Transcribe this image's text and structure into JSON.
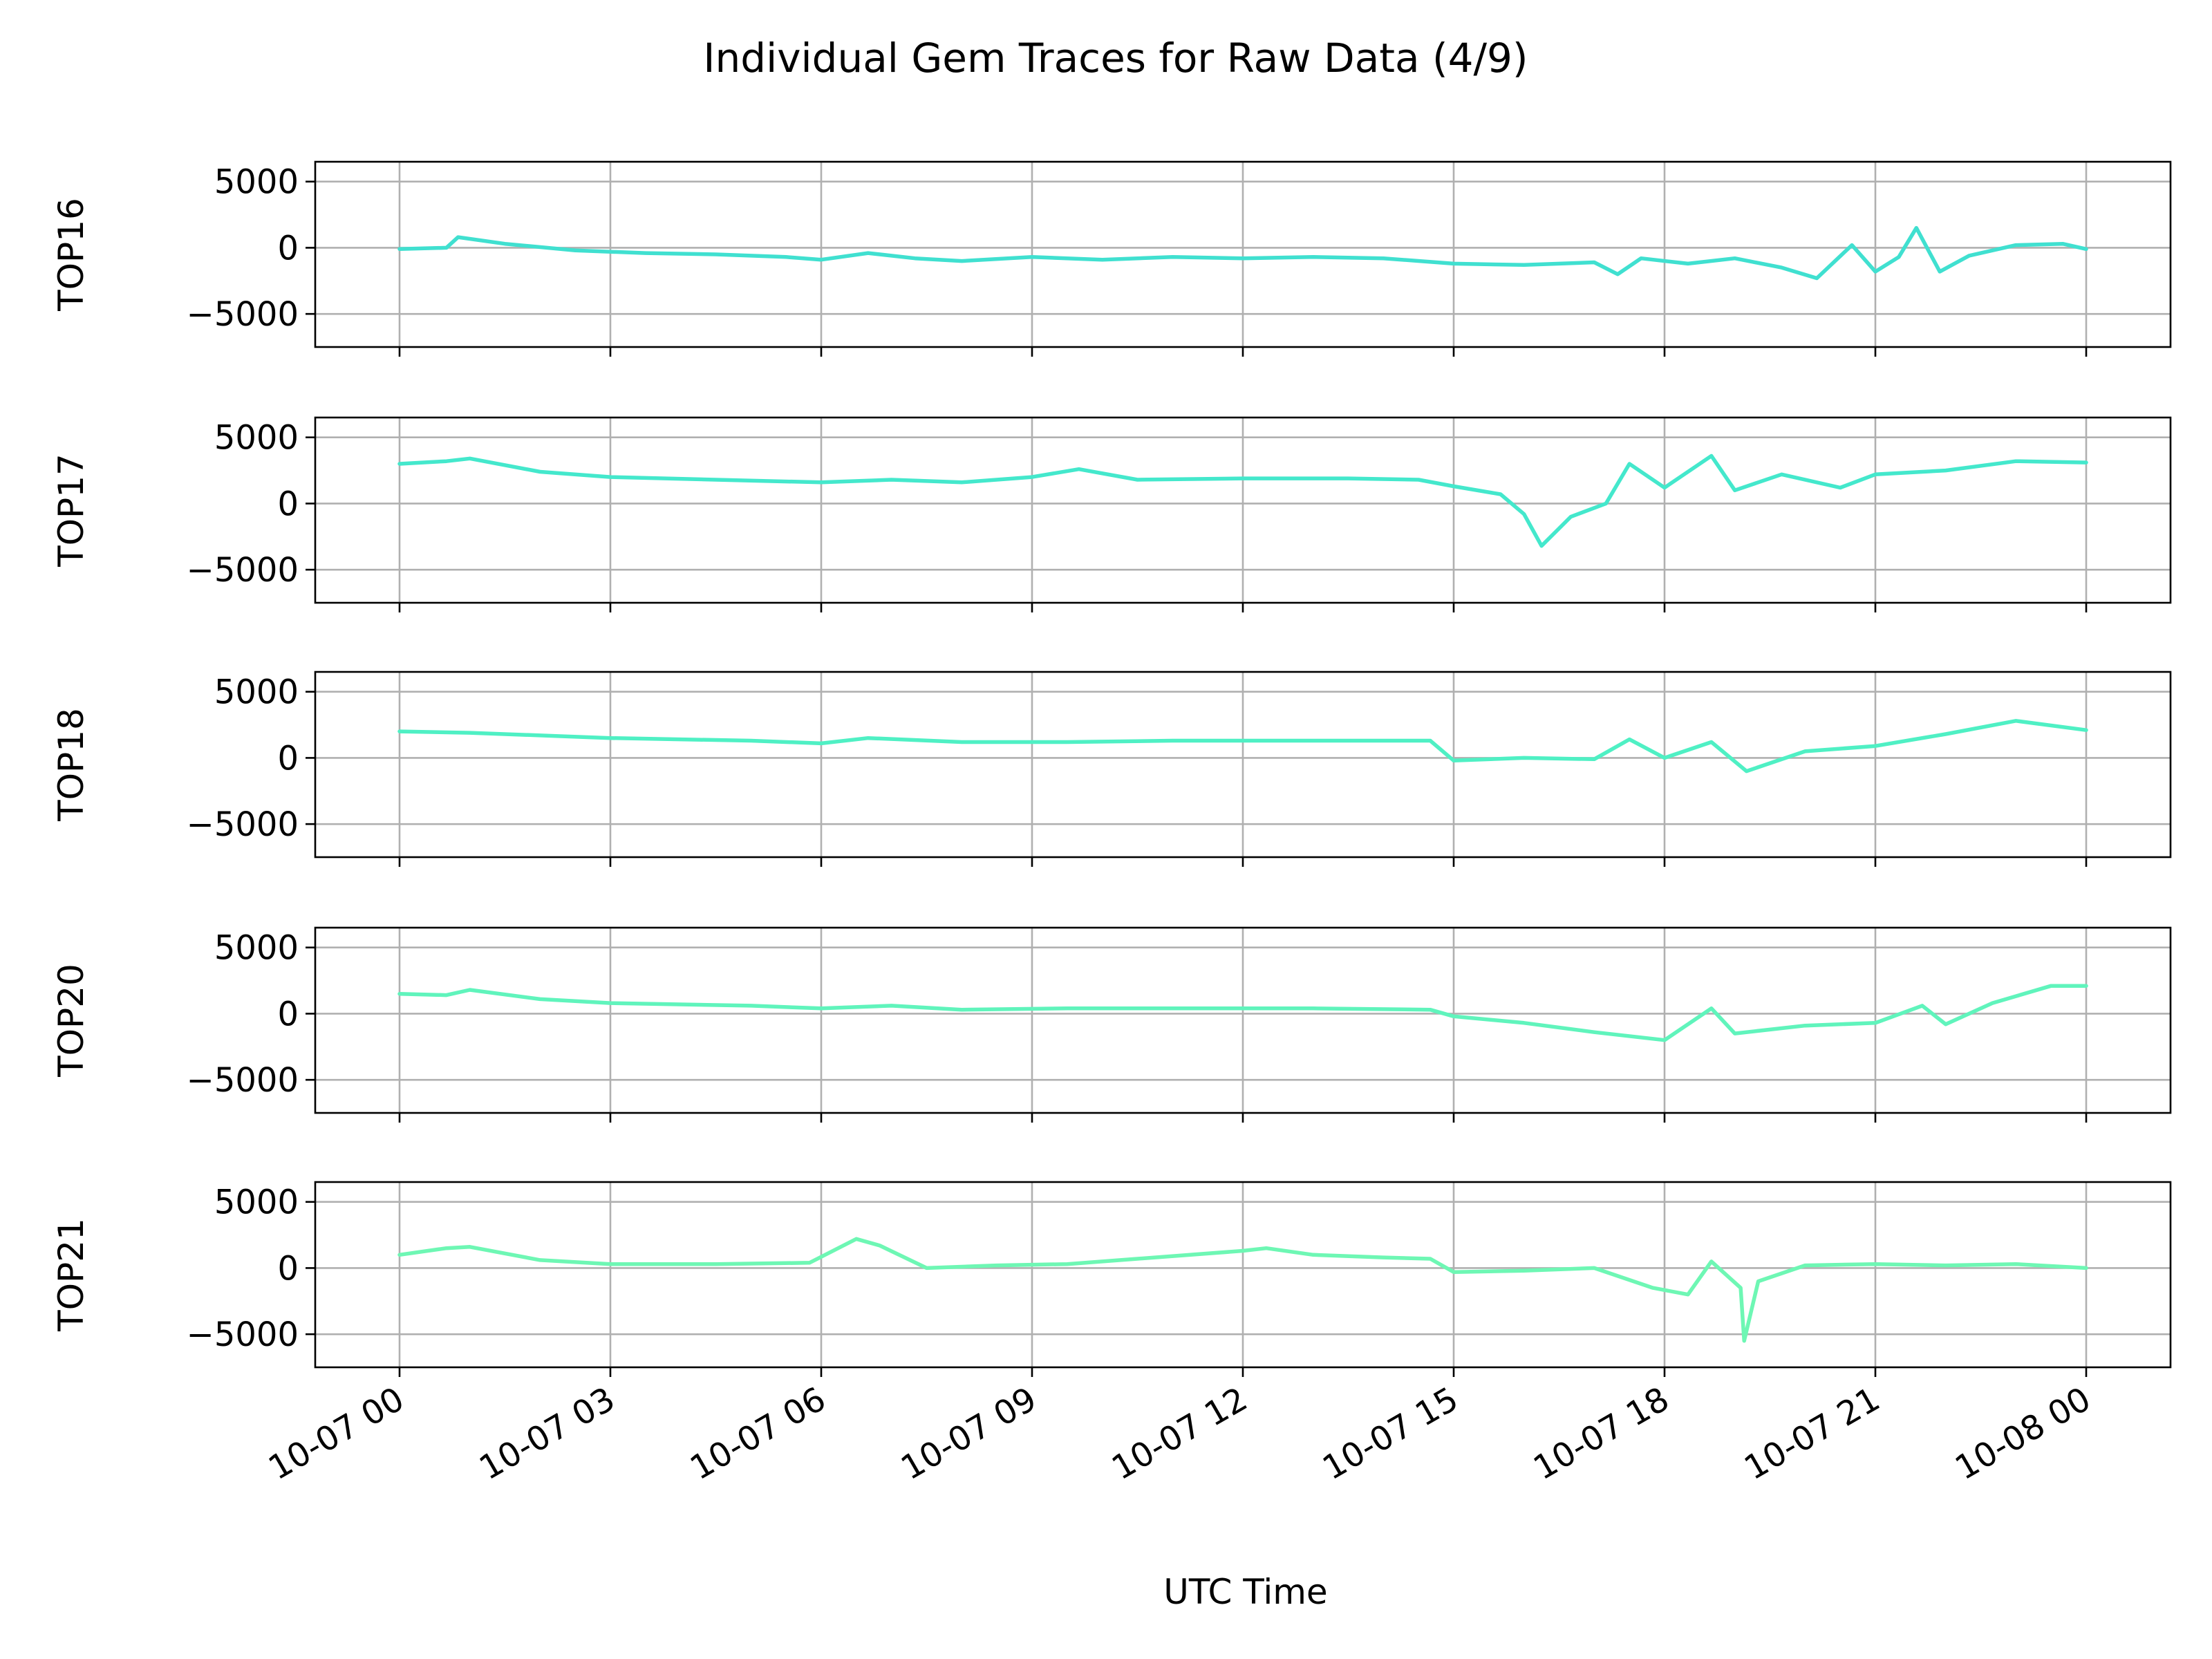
{
  "chart_data": {
    "type": "line",
    "title": "Individual Gem Traces for Raw Data (4/9)",
    "xlabel": "UTC Time",
    "x_tick_labels": [
      "10-07 00",
      "10-07 03",
      "10-07 06",
      "10-07 09",
      "10-07 12",
      "10-07 15",
      "10-07 18",
      "10-07 21",
      "10-08 00"
    ],
    "x_ticks": [
      "2023-10-07T00:00",
      "2023-10-07T03:00",
      "2023-10-07T06:00",
      "2023-10-07T09:00",
      "2023-10-07T12:00",
      "2023-10-07T15:00",
      "2023-10-07T18:00",
      "2023-10-07T21:00",
      "2023-10-08T00:00"
    ],
    "xlim": [
      "2023-10-06T22:48",
      "2023-10-08T01:12"
    ],
    "ylim": [
      -7500,
      6500
    ],
    "y_ticks": [
      5000,
      0,
      -5000
    ],
    "y_tick_labels": [
      "5000",
      "0",
      "−5000"
    ],
    "grid": true,
    "panels": [
      {
        "ylabel": "TOP16",
        "color": "#40e0d0",
        "points": [
          [
            "2023-10-07T00:00",
            -100
          ],
          [
            "2023-10-07T00:40",
            0
          ],
          [
            "2023-10-07T00:50",
            800
          ],
          [
            "2023-10-07T01:30",
            300
          ],
          [
            "2023-10-07T02:30",
            -200
          ],
          [
            "2023-10-07T03:30",
            -400
          ],
          [
            "2023-10-07T04:30",
            -500
          ],
          [
            "2023-10-07T05:30",
            -700
          ],
          [
            "2023-10-07T06:00",
            -900
          ],
          [
            "2023-10-07T06:40",
            -400
          ],
          [
            "2023-10-07T07:20",
            -800
          ],
          [
            "2023-10-07T08:00",
            -1000
          ],
          [
            "2023-10-07T09:00",
            -700
          ],
          [
            "2023-10-07T10:00",
            -900
          ],
          [
            "2023-10-07T11:00",
            -700
          ],
          [
            "2023-10-07T12:00",
            -800
          ],
          [
            "2023-10-07T13:00",
            -700
          ],
          [
            "2023-10-07T14:00",
            -800
          ],
          [
            "2023-10-07T15:00",
            -1200
          ],
          [
            "2023-10-07T16:00",
            -1300
          ],
          [
            "2023-10-07T17:00",
            -1100
          ],
          [
            "2023-10-07T17:20",
            -2000
          ],
          [
            "2023-10-07T17:40",
            -800
          ],
          [
            "2023-10-07T18:20",
            -1200
          ],
          [
            "2023-10-07T19:00",
            -800
          ],
          [
            "2023-10-07T19:40",
            -1500
          ],
          [
            "2023-10-07T20:10",
            -2300
          ],
          [
            "2023-10-07T20:40",
            200
          ],
          [
            "2023-10-07T21:00",
            -1800
          ],
          [
            "2023-10-07T21:20",
            -700
          ],
          [
            "2023-10-07T21:35",
            1500
          ],
          [
            "2023-10-07T21:55",
            -1800
          ],
          [
            "2023-10-07T22:20",
            -600
          ],
          [
            "2023-10-07T23:00",
            200
          ],
          [
            "2023-10-07T23:40",
            300
          ],
          [
            "2023-10-08T00:00",
            -100
          ]
        ]
      },
      {
        "ylabel": "TOP17",
        "color": "#44e8cc",
        "points": [
          [
            "2023-10-07T00:00",
            3000
          ],
          [
            "2023-10-07T00:40",
            3200
          ],
          [
            "2023-10-07T01:00",
            3400
          ],
          [
            "2023-10-07T02:00",
            2400
          ],
          [
            "2023-10-07T03:00",
            2000
          ],
          [
            "2023-10-07T04:30",
            1800
          ],
          [
            "2023-10-07T06:00",
            1600
          ],
          [
            "2023-10-07T07:00",
            1800
          ],
          [
            "2023-10-07T08:00",
            1600
          ],
          [
            "2023-10-07T09:00",
            2000
          ],
          [
            "2023-10-07T09:40",
            2600
          ],
          [
            "2023-10-07T10:30",
            1800
          ],
          [
            "2023-10-07T12:00",
            1900
          ],
          [
            "2023-10-07T13:30",
            1900
          ],
          [
            "2023-10-07T14:30",
            1800
          ],
          [
            "2023-10-07T15:00",
            1300
          ],
          [
            "2023-10-07T15:40",
            700
          ],
          [
            "2023-10-07T16:00",
            -800
          ],
          [
            "2023-10-07T16:15",
            -3200
          ],
          [
            "2023-10-07T16:40",
            -1000
          ],
          [
            "2023-10-07T17:10",
            0
          ],
          [
            "2023-10-07T17:30",
            3000
          ],
          [
            "2023-10-07T18:00",
            1200
          ],
          [
            "2023-10-07T18:40",
            3600
          ],
          [
            "2023-10-07T19:00",
            1000
          ],
          [
            "2023-10-07T19:40",
            2200
          ],
          [
            "2023-10-07T20:30",
            1200
          ],
          [
            "2023-10-07T21:00",
            2200
          ],
          [
            "2023-10-07T22:00",
            2500
          ],
          [
            "2023-10-07T23:00",
            3200
          ],
          [
            "2023-10-08T00:00",
            3100
          ]
        ]
      },
      {
        "ylabel": "TOP18",
        "color": "#4ff0c4",
        "points": [
          [
            "2023-10-07T00:00",
            2000
          ],
          [
            "2023-10-07T01:00",
            1900
          ],
          [
            "2023-10-07T02:00",
            1700
          ],
          [
            "2023-10-07T03:00",
            1500
          ],
          [
            "2023-10-07T05:00",
            1300
          ],
          [
            "2023-10-07T06:00",
            1100
          ],
          [
            "2023-10-07T06:40",
            1500
          ],
          [
            "2023-10-07T08:00",
            1200
          ],
          [
            "2023-10-07T09:30",
            1200
          ],
          [
            "2023-10-07T11:00",
            1300
          ],
          [
            "2023-10-07T13:00",
            1300
          ],
          [
            "2023-10-07T14:40",
            1300
          ],
          [
            "2023-10-07T15:00",
            -200
          ],
          [
            "2023-10-07T16:00",
            0
          ],
          [
            "2023-10-07T17:00",
            -100
          ],
          [
            "2023-10-07T17:30",
            1400
          ],
          [
            "2023-10-07T18:00",
            0
          ],
          [
            "2023-10-07T18:40",
            1200
          ],
          [
            "2023-10-07T19:10",
            -1000
          ],
          [
            "2023-10-07T20:00",
            500
          ],
          [
            "2023-10-07T21:00",
            900
          ],
          [
            "2023-10-07T22:00",
            1800
          ],
          [
            "2023-10-07T23:00",
            2800
          ],
          [
            "2023-10-08T00:00",
            2100
          ]
        ]
      },
      {
        "ylabel": "TOP20",
        "color": "#60f4bc",
        "points": [
          [
            "2023-10-07T00:00",
            1500
          ],
          [
            "2023-10-07T00:40",
            1400
          ],
          [
            "2023-10-07T01:00",
            1800
          ],
          [
            "2023-10-07T02:00",
            1100
          ],
          [
            "2023-10-07T03:00",
            800
          ],
          [
            "2023-10-07T05:00",
            600
          ],
          [
            "2023-10-07T06:00",
            400
          ],
          [
            "2023-10-07T07:00",
            600
          ],
          [
            "2023-10-07T08:00",
            300
          ],
          [
            "2023-10-07T09:30",
            400
          ],
          [
            "2023-10-07T11:00",
            400
          ],
          [
            "2023-10-07T13:00",
            400
          ],
          [
            "2023-10-07T14:40",
            300
          ],
          [
            "2023-10-07T15:00",
            -200
          ],
          [
            "2023-10-07T16:00",
            -700
          ],
          [
            "2023-10-07T17:00",
            -1400
          ],
          [
            "2023-10-07T18:00",
            -2000
          ],
          [
            "2023-10-07T18:40",
            400
          ],
          [
            "2023-10-07T19:00",
            -1500
          ],
          [
            "2023-10-07T20:00",
            -900
          ],
          [
            "2023-10-07T21:00",
            -700
          ],
          [
            "2023-10-07T21:40",
            600
          ],
          [
            "2023-10-07T22:00",
            -800
          ],
          [
            "2023-10-07T22:40",
            800
          ],
          [
            "2023-10-07T23:30",
            2100
          ],
          [
            "2023-10-08T00:00",
            2100
          ]
        ]
      },
      {
        "ylabel": "TOP21",
        "color": "#6ef7b4",
        "points": [
          [
            "2023-10-07T00:00",
            1000
          ],
          [
            "2023-10-07T00:40",
            1500
          ],
          [
            "2023-10-07T01:00",
            1600
          ],
          [
            "2023-10-07T02:00",
            600
          ],
          [
            "2023-10-07T03:00",
            300
          ],
          [
            "2023-10-07T04:30",
            300
          ],
          [
            "2023-10-07T05:50",
            400
          ],
          [
            "2023-10-07T06:30",
            2200
          ],
          [
            "2023-10-07T06:50",
            1700
          ],
          [
            "2023-10-07T07:30",
            0
          ],
          [
            "2023-10-07T08:30",
            200
          ],
          [
            "2023-10-07T09:30",
            300
          ],
          [
            "2023-10-07T10:30",
            700
          ],
          [
            "2023-10-07T12:00",
            1300
          ],
          [
            "2023-10-07T12:20",
            1500
          ],
          [
            "2023-10-07T13:00",
            1000
          ],
          [
            "2023-10-07T14:00",
            800
          ],
          [
            "2023-10-07T14:40",
            700
          ],
          [
            "2023-10-07T15:00",
            -300
          ],
          [
            "2023-10-07T16:00",
            -200
          ],
          [
            "2023-10-07T17:00",
            0
          ],
          [
            "2023-10-07T17:50",
            -1500
          ],
          [
            "2023-10-07T18:20",
            -2000
          ],
          [
            "2023-10-07T18:40",
            500
          ],
          [
            "2023-10-07T19:05",
            -1500
          ],
          [
            "2023-10-07T19:08",
            -5500
          ],
          [
            "2023-10-07T19:20",
            -1000
          ],
          [
            "2023-10-07T20:00",
            200
          ],
          [
            "2023-10-07T21:00",
            300
          ],
          [
            "2023-10-07T22:00",
            200
          ],
          [
            "2023-10-07T23:00",
            300
          ],
          [
            "2023-10-08T00:00",
            0
          ]
        ]
      }
    ]
  }
}
